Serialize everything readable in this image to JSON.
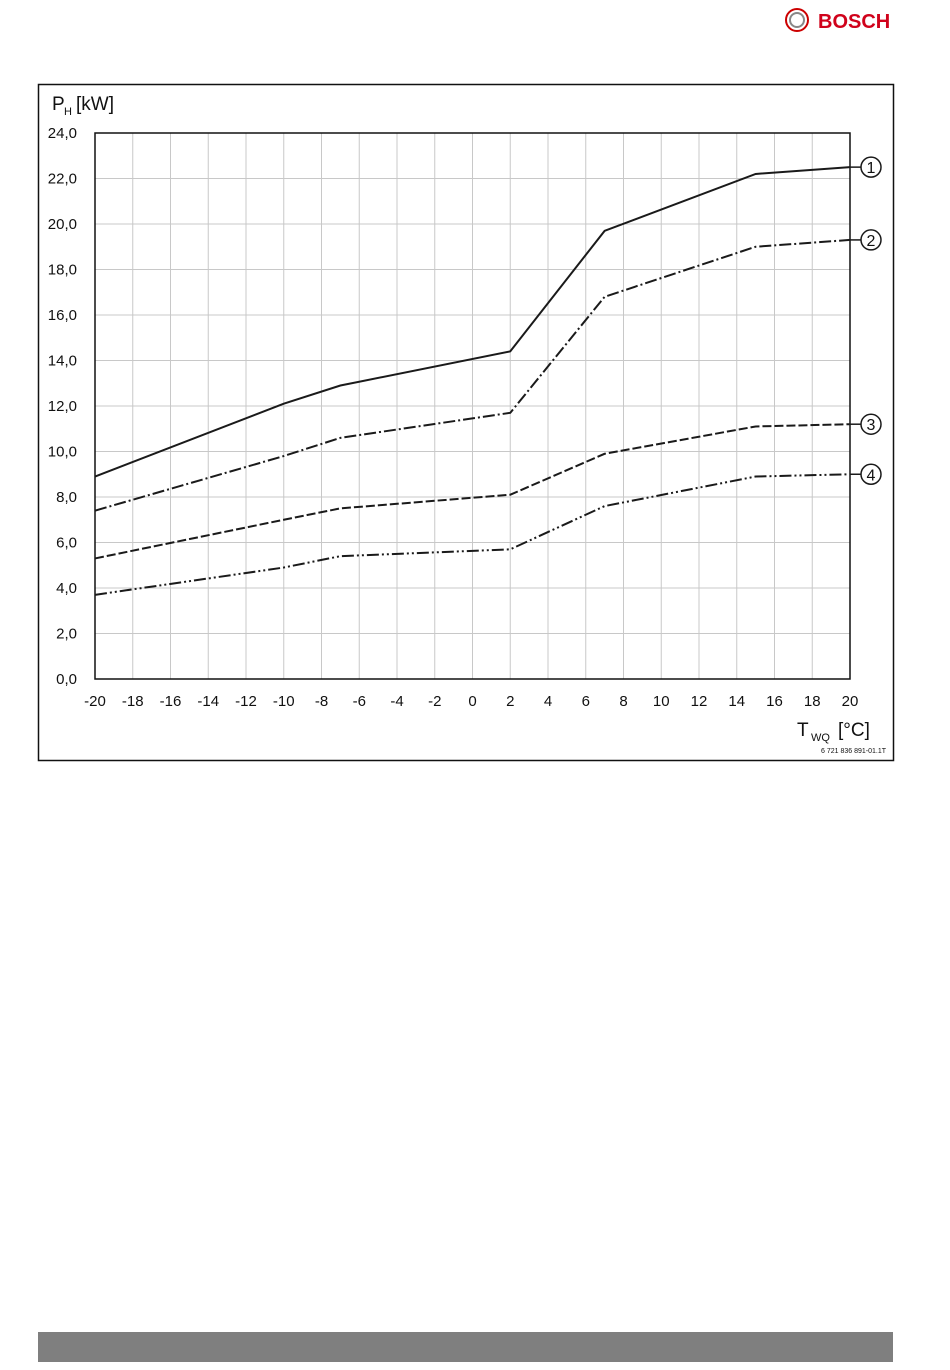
{
  "brand": "BOSCH",
  "figure_code": "6 721 836 891-01.1T",
  "chart_data": {
    "type": "line",
    "ylabel": {
      "main": "P",
      "sub": "H",
      "unit": "[kW]"
    },
    "xlabel": {
      "main": "T",
      "sub": "WQ",
      "unit": "[°C]"
    },
    "x": [
      -20,
      -10,
      -7,
      2,
      7,
      15,
      20
    ],
    "series": [
      {
        "name": "1",
        "color": "#1a1a1a",
        "linestyle": "solid",
        "values": [
          8.9,
          12.1,
          12.9,
          14.4,
          19.7,
          22.2,
          22.5
        ]
      },
      {
        "name": "2",
        "color": "#1a1a1a",
        "linestyle": "dashdot",
        "values": [
          7.4,
          9.8,
          10.6,
          11.7,
          16.8,
          19.0,
          19.3
        ]
      },
      {
        "name": "3",
        "color": "#1a1a1a",
        "linestyle": "dashed",
        "values": [
          5.3,
          7.0,
          7.5,
          8.1,
          9.9,
          11.1,
          11.2
        ]
      },
      {
        "name": "4",
        "color": "#1a1a1a",
        "linestyle": "dashdotdot",
        "values": [
          3.7,
          4.9,
          5.4,
          5.7,
          7.6,
          8.9,
          9.0
        ]
      }
    ],
    "xlim": [
      -20,
      20
    ],
    "xticks": [
      -20,
      -18,
      -16,
      -14,
      -12,
      -10,
      -8,
      -6,
      -4,
      -2,
      0,
      2,
      4,
      6,
      8,
      10,
      12,
      14,
      16,
      18,
      20
    ],
    "ylim": [
      0,
      24
    ],
    "yticks": [
      {
        "value": 0,
        "label": "0,0"
      },
      {
        "value": 2,
        "label": "2,0"
      },
      {
        "value": 4,
        "label": "4,0"
      },
      {
        "value": 6,
        "label": "6,0"
      },
      {
        "value": 8,
        "label": "8,0"
      },
      {
        "value": 10,
        "label": "10,0"
      },
      {
        "value": 12,
        "label": "12,0"
      },
      {
        "value": 14,
        "label": "14,0"
      },
      {
        "value": 16,
        "label": "16,0"
      },
      {
        "value": 18,
        "label": "18,0"
      },
      {
        "value": 20,
        "label": "20,0"
      },
      {
        "value": 22,
        "label": "22,0"
      },
      {
        "value": 24,
        "label": "24,0"
      }
    ],
    "grid": true
  }
}
